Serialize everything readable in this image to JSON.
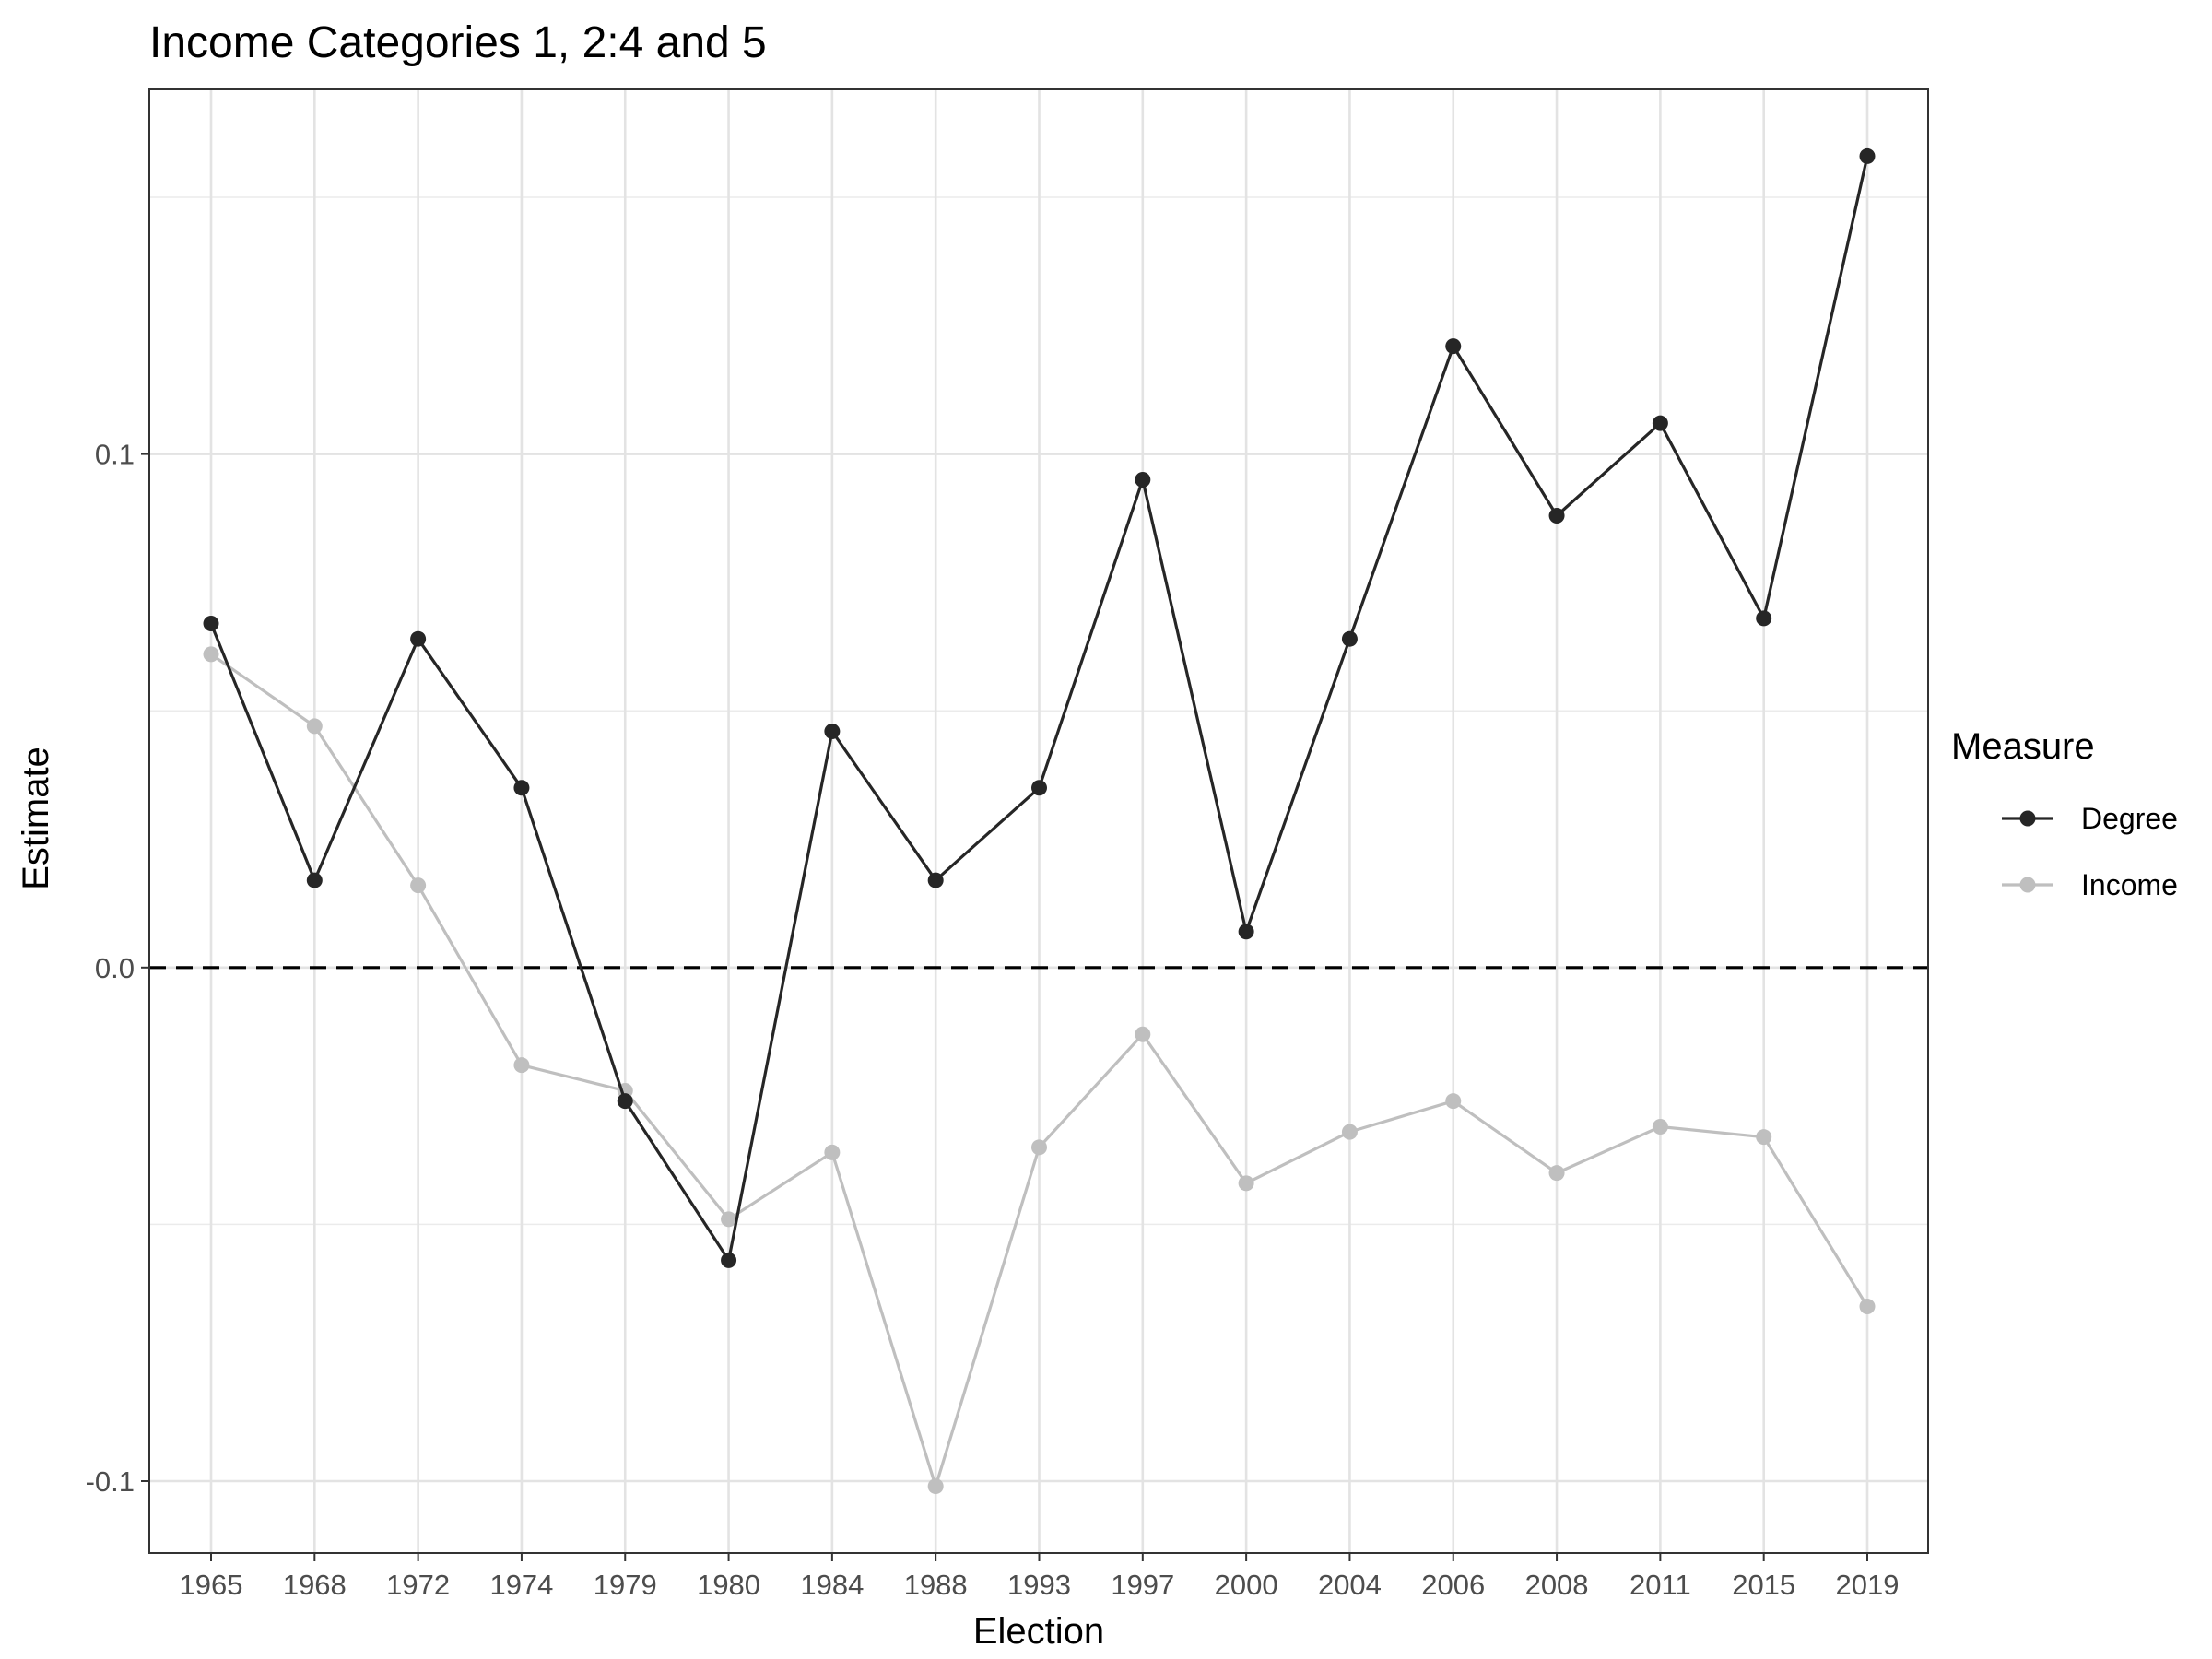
{
  "chart_data": {
    "type": "line",
    "title": "Income Categories 1, 2:4 and 5",
    "xlabel": "Election",
    "ylabel": "Estimate",
    "categories": [
      "1965",
      "1968",
      "1972",
      "1974",
      "1979",
      "1980",
      "1984",
      "1988",
      "1993",
      "1997",
      "2000",
      "2004",
      "2006",
      "2008",
      "2011",
      "2015",
      "2019"
    ],
    "series": [
      {
        "name": "Degree",
        "color": "#262626",
        "values": [
          0.067,
          0.017,
          0.064,
          0.035,
          -0.026,
          -0.057,
          0.046,
          0.017,
          0.035,
          0.095,
          0.007,
          0.064,
          0.121,
          0.088,
          0.106,
          0.068,
          0.158
        ]
      },
      {
        "name": "Income",
        "color": "#bfbfbf",
        "values": [
          0.061,
          0.047,
          0.016,
          -0.019,
          -0.024,
          -0.049,
          -0.036,
          -0.101,
          -0.035,
          -0.013,
          -0.042,
          -0.032,
          -0.026,
          -0.04,
          -0.031,
          -0.033,
          -0.066
        ]
      }
    ],
    "yticks": [
      -0.1,
      0.0,
      0.1
    ],
    "ytick_labels": [
      "-0.1",
      "0.0",
      "0.1"
    ],
    "ylim": [
      -0.114,
      0.171
    ],
    "reference_line": 0.0,
    "grid": true,
    "legend": {
      "title": "Measure",
      "position": "right"
    }
  }
}
